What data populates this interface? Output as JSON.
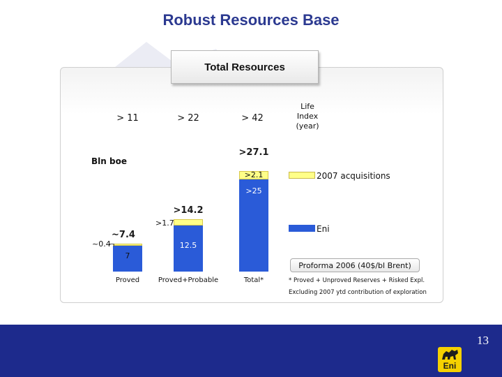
{
  "page": {
    "title": "Robust Resources Base",
    "panel_header": "Total Resources",
    "proforma": "Proforma 2006 (40$/bl Brent)",
    "footnote_1": "* Proved + Unproved Reserves + Risked Expl.",
    "footnote_2": "Excluding 2007 ytd contribution of exploration",
    "page_number": "13",
    "logo_text": "Eni"
  },
  "colors": {
    "eni": "#2a5bd8",
    "acquisitions": "#ffff88",
    "title": "#2b3990",
    "footer": "#1d2a8c"
  },
  "icons": {
    "logo": "eni-six-legged-dog-logo",
    "watermark": "eni-dog-watermark"
  },
  "chart_data": {
    "type": "bar",
    "stacked": true,
    "unit_label": "Bln boe",
    "categories": [
      "Proved",
      "Proved+Probable",
      "Total*"
    ],
    "series": [
      {
        "name": "Eni",
        "values": [
          7,
          12.5,
          25
        ],
        "labels": [
          "7",
          "12.5",
          ">25"
        ]
      },
      {
        "name": "2007 acquisitions",
        "values": [
          0.4,
          1.7,
          2.1
        ],
        "labels": [
          "~0.4",
          ">1.7",
          ">2.1"
        ]
      }
    ],
    "totals": [
      "~7.4",
      ">14.2",
      ">27.1"
    ],
    "life_index": {
      "header": [
        "Life",
        "Index",
        "(year)"
      ],
      "values": [
        "> 11",
        "> 22",
        "> 42"
      ]
    },
    "legend": [
      "2007 acquisitions",
      "Eni"
    ],
    "ylim": [
      0,
      28.5
    ]
  }
}
